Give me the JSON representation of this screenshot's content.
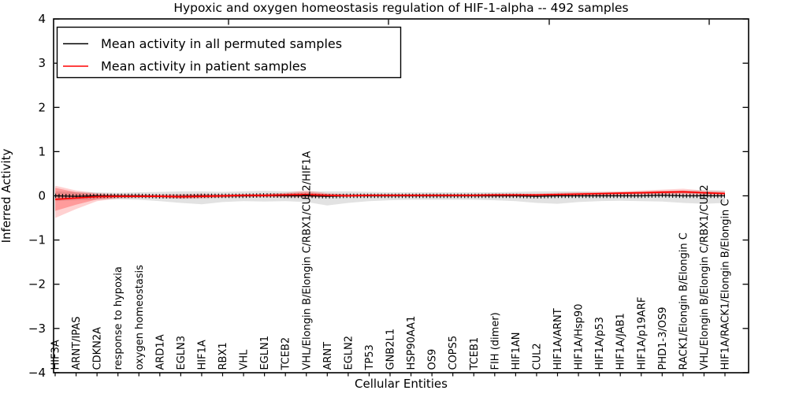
{
  "axes": {
    "y_tick_labels": [
      "4",
      "3",
      "2",
      "1",
      "0",
      "−1",
      "−2",
      "−3",
      "−4"
    ]
  },
  "chart_data": {
    "type": "line",
    "title": "Hypoxic and oxygen homeostasis regulation of HIF-1-alpha -- 492 samples",
    "xlabel": "Cellular Entities",
    "ylabel": "Inferred Activity",
    "ylim": [
      -4,
      4
    ],
    "yticks": [
      4,
      3,
      2,
      1,
      0,
      -1,
      -2,
      -3,
      -4
    ],
    "grid": false,
    "legend_position": "upper left",
    "categories": [
      "HIF3A",
      "ARNT/IPAS",
      "CDKN2A",
      "response to hypoxia",
      "oxygen homeostasis",
      "ARD1A",
      "EGLN3",
      "HIF1A",
      "RBX1",
      "VHL",
      "EGLN1",
      "TCEB2",
      "VHL/Elongin B/Elongin C/RBX1/CUL2/HIF1A",
      "ARNT",
      "EGLN2",
      "TP53",
      "GNB2L1",
      "HSP90AA1",
      "OS9",
      "COPS5",
      "TCEB1",
      "FIH (dimer)",
      "HIF1AN",
      "CUL2",
      "HIF1A/ARNT",
      "HIF1A/Hsp90",
      "HIF1A/p53",
      "HIF1A/JAB1",
      "HIF1A/p19ARF",
      "PHD1-3/OS9",
      "RACK1/Elongin B/Elongin C",
      "VHL/Elongin B/Elongin C/RBX1/CUL2",
      "HIF1A/RACK1/Elongin B/Elongin C"
    ],
    "series": [
      {
        "name": "Mean activity in all permuted samples",
        "color": "#000000",
        "style": "line-with-tick-markers",
        "band_color": "#bbbbbb",
        "values": [
          0,
          -0.01,
          0,
          0,
          0,
          -0.01,
          -0.01,
          0,
          0,
          0,
          0.01,
          0,
          0,
          -0.01,
          0,
          0,
          0,
          0,
          0,
          0,
          0,
          0,
          0,
          -0.01,
          0,
          0,
          0,
          0,
          0,
          0.01,
          0,
          0,
          0
        ],
        "band_upper": [
          0.1,
          0.09,
          0.08,
          0.07,
          0.08,
          0.09,
          0.1,
          0.1,
          0.09,
          0.1,
          0.11,
          0.1,
          0.1,
          0.1,
          0.1,
          0.09,
          0.08,
          0.08,
          0.08,
          0.08,
          0.08,
          0.08,
          0.09,
          0.1,
          0.1,
          0.1,
          0.09,
          0.09,
          0.1,
          0.11,
          0.12,
          0.13,
          0.12
        ],
        "band_lower": [
          -0.12,
          -0.1,
          -0.09,
          -0.08,
          -0.09,
          -0.12,
          -0.16,
          -0.19,
          -0.14,
          -0.12,
          -0.13,
          -0.12,
          -0.14,
          -0.22,
          -0.16,
          -0.12,
          -0.1,
          -0.09,
          -0.09,
          -0.09,
          -0.09,
          -0.1,
          -0.12,
          -0.16,
          -0.18,
          -0.14,
          -0.12,
          -0.11,
          -0.12,
          -0.13,
          -0.16,
          -0.18,
          -0.16
        ]
      },
      {
        "name": "Mean activity in patient samples",
        "color": "#ff0000",
        "style": "line-with-bands",
        "band_color": "#ff0000",
        "values": [
          -0.08,
          -0.05,
          -0.02,
          -0.01,
          -0.01,
          -0.01,
          -0.02,
          -0.01,
          0,
          0.01,
          0.01,
          0.02,
          0.03,
          0.01,
          0,
          0.01,
          0.01,
          0.01,
          0.01,
          0.01,
          0.01,
          0.02,
          0.02,
          0.02,
          0.03,
          0.04,
          0.05,
          0.06,
          0.07,
          0.08,
          0.09,
          0.07,
          0.05
        ],
        "band_outer_upper": [
          0.23,
          0.12,
          0.06,
          0.04,
          0.03,
          0.03,
          0.04,
          0.05,
          0.03,
          0.04,
          0.05,
          0.07,
          0.12,
          0.06,
          0.04,
          0.04,
          0.04,
          0.04,
          0.04,
          0.04,
          0.04,
          0.05,
          0.05,
          0.05,
          0.07,
          0.08,
          0.09,
          0.1,
          0.12,
          0.14,
          0.16,
          0.12,
          0.1
        ],
        "band_outer_lower": [
          -0.5,
          -0.3,
          -0.12,
          -0.06,
          -0.05,
          -0.05,
          -0.07,
          -0.06,
          -0.04,
          -0.03,
          -0.03,
          -0.03,
          -0.04,
          -0.03,
          -0.02,
          -0.02,
          -0.02,
          -0.02,
          -0.02,
          -0.02,
          -0.02,
          -0.02,
          -0.02,
          -0.02,
          -0.01,
          -0.01,
          0,
          0.01,
          0.02,
          0.02,
          0.02,
          0.01,
          0
        ],
        "band_inner_upper": [
          0.18,
          0.08,
          0.04,
          0.02,
          0.02,
          0.02,
          0.02,
          0.03,
          0.02,
          0.03,
          0.03,
          0.05,
          0.08,
          0.04,
          0.03,
          0.03,
          0.03,
          0.03,
          0.03,
          0.03,
          0.03,
          0.03,
          0.03,
          0.03,
          0.05,
          0.06,
          0.07,
          0.08,
          0.09,
          0.11,
          0.12,
          0.09,
          0.08
        ],
        "band_inner_lower": [
          -0.34,
          -0.2,
          -0.08,
          -0.04,
          -0.03,
          -0.03,
          -0.05,
          -0.04,
          -0.03,
          -0.02,
          -0.02,
          -0.01,
          -0.02,
          -0.01,
          -0.01,
          -0.01,
          -0.01,
          -0.01,
          -0.01,
          -0.01,
          -0.01,
          -0.01,
          -0.01,
          -0.01,
          0,
          0.01,
          0.02,
          0.03,
          0.04,
          0.05,
          0.06,
          0.04,
          0.03
        ]
      }
    ]
  }
}
